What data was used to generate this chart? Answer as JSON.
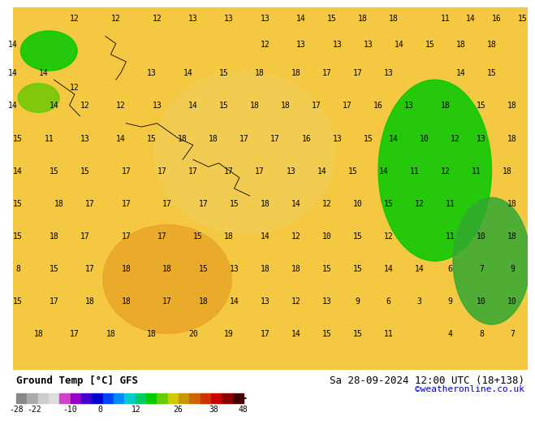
{
  "title_left": "Ground Temp [°C] GFS",
  "title_right": "Sa 28-09-2024 12:00 UTC (18+138)",
  "credit": "©weatheronline.co.uk",
  "colorbar_values": [
    -28,
    -22,
    -10,
    0,
    12,
    26,
    38,
    48
  ],
  "colorbar_colors": [
    "#5a5a5a",
    "#8c8c8c",
    "#b4b4b4",
    "#d8d8d8",
    "#c864c8",
    "#a000c8",
    "#5000c8",
    "#0000c8",
    "#0050ff",
    "#0096ff",
    "#00c8c8",
    "#00c864",
    "#00c800",
    "#64c800",
    "#c8c800",
    "#c89600",
    "#c86400",
    "#c83200",
    "#c80000",
    "#960000",
    "#640000"
  ],
  "colorbar_bounds": [
    -28,
    -22,
    -10,
    0,
    12,
    26,
    38,
    48
  ],
  "bg_color": "#ffffff",
  "map_bg": "#f5c842",
  "text_color": "#000000",
  "credit_color": "#0000cc",
  "font_size_title": 9,
  "font_size_credit": 8,
  "font_size_labels": 8
}
